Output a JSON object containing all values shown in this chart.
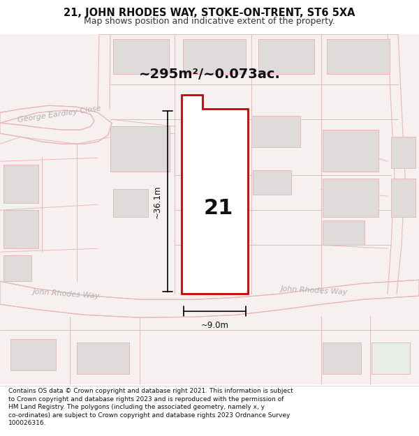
{
  "title_line1": "21, JOHN RHODES WAY, STOKE-ON-TRENT, ST6 5XA",
  "title_line2": "Map shows position and indicative extent of the property.",
  "area_text": "~295m²/~0.073ac.",
  "label_number": "21",
  "dim_height": "~36.1m",
  "dim_width": "~9.0m",
  "street_name_left": "John Rhodes Way",
  "street_name_right": "John Rhodes Way",
  "street_name_top": "George Eardley Close",
  "footer_text": "Contains OS data © Crown copyright and database right 2021. This information is subject to Crown copyright and database rights 2023 and is reproduced with the permission of HM Land Registry. The polygons (including the associated geometry, namely x, y co-ordinates) are subject to Crown copyright and database rights 2023 Ordnance Survey 100026316.",
  "bg_color": "#f7f0f0",
  "map_bg": "#ffffff",
  "road_color": "#e8b8b8",
  "building_color": "#e0dbdb",
  "highlight_color": "#ffffff",
  "highlight_border": "#cc0000",
  "dim_color": "#1a1a1a",
  "text_color": "#333333",
  "street_text_color": "#b0b0b0",
  "title_fontsize": 10.5,
  "subtitle_fontsize": 9,
  "footer_fontsize": 6.5,
  "area_fontsize": 14,
  "label_fontsize": 22,
  "dim_fontsize": 8.5,
  "street_fontsize": 8
}
